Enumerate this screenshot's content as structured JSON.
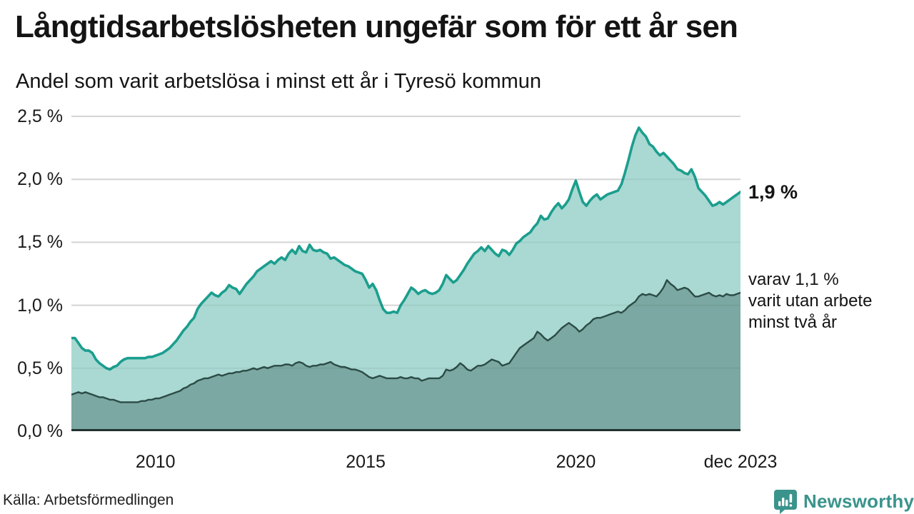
{
  "header": {
    "title": "Långtidsarbetslösheten ungefär som för ett år sen",
    "subtitle": "Andel som varit arbetslösa i minst ett år i Tyresö kommun"
  },
  "chart_data": {
    "type": "area",
    "title": "Långtidsarbetslösheten ungefär som för ett år sen",
    "subtitle": "Andel som varit arbetslösa i minst ett år i Tyresö kommun",
    "unit": "%",
    "x_start_year": 2008,
    "x_end": "dec 2023",
    "ylim": [
      0,
      2.5
    ],
    "grid": true,
    "y_ticks": [
      {
        "value": 0.0,
        "label": "0,0 %"
      },
      {
        "value": 0.5,
        "label": "0,5 %"
      },
      {
        "value": 1.0,
        "label": "1,0 %"
      },
      {
        "value": 1.5,
        "label": "1,5 %"
      },
      {
        "value": 2.0,
        "label": "2,0 %"
      },
      {
        "value": 2.5,
        "label": "2,5 %"
      }
    ],
    "x_ticks": [
      {
        "label": "2010",
        "year": 2010
      },
      {
        "label": "2015",
        "year": 2015
      },
      {
        "label": "2020",
        "year": 2020
      },
      {
        "label": "dec 2023",
        "year": 2023.9167
      }
    ],
    "colors": {
      "total_line": "#1b9e8e",
      "total_fill": "#a9d9d2",
      "subset_line": "#2c4b46",
      "subset_fill": "#7ba8a2",
      "gridline": "#e0e0e0",
      "axis_line": "#223230"
    },
    "series": [
      {
        "name": "arbetslösa minst ett år (totalt)",
        "end_value_label": "1,9 %",
        "values": [
          0.74,
          0.74,
          0.7,
          0.66,
          0.64,
          0.64,
          0.62,
          0.57,
          0.54,
          0.52,
          0.5,
          0.49,
          0.51,
          0.52,
          0.55,
          0.57,
          0.58,
          0.58,
          0.58,
          0.58,
          0.58,
          0.58,
          0.59,
          0.59,
          0.6,
          0.61,
          0.62,
          0.64,
          0.66,
          0.69,
          0.72,
          0.76,
          0.8,
          0.83,
          0.87,
          0.9,
          0.97,
          1.01,
          1.04,
          1.07,
          1.1,
          1.08,
          1.07,
          1.1,
          1.12,
          1.16,
          1.14,
          1.13,
          1.09,
          1.13,
          1.17,
          1.2,
          1.23,
          1.27,
          1.29,
          1.31,
          1.33,
          1.35,
          1.33,
          1.36,
          1.38,
          1.36,
          1.41,
          1.44,
          1.41,
          1.47,
          1.43,
          1.42,
          1.48,
          1.44,
          1.43,
          1.44,
          1.42,
          1.41,
          1.37,
          1.38,
          1.36,
          1.34,
          1.32,
          1.31,
          1.29,
          1.27,
          1.26,
          1.25,
          1.2,
          1.14,
          1.17,
          1.12,
          1.04,
          0.97,
          0.94,
          0.94,
          0.95,
          0.94,
          1.0,
          1.04,
          1.09,
          1.14,
          1.12,
          1.09,
          1.11,
          1.12,
          1.1,
          1.09,
          1.1,
          1.12,
          1.17,
          1.24,
          1.21,
          1.18,
          1.2,
          1.24,
          1.28,
          1.33,
          1.37,
          1.41,
          1.43,
          1.46,
          1.43,
          1.47,
          1.44,
          1.41,
          1.39,
          1.44,
          1.43,
          1.4,
          1.44,
          1.49,
          1.51,
          1.54,
          1.56,
          1.58,
          1.62,
          1.65,
          1.71,
          1.68,
          1.69,
          1.74,
          1.78,
          1.81,
          1.77,
          1.8,
          1.84,
          1.92,
          1.99,
          1.9,
          1.82,
          1.79,
          1.83,
          1.86,
          1.88,
          1.84,
          1.86,
          1.88,
          1.89,
          1.9,
          1.91,
          1.96,
          2.05,
          2.15,
          2.26,
          2.35,
          2.41,
          2.37,
          2.34,
          2.28,
          2.26,
          2.22,
          2.19,
          2.21,
          2.18,
          2.15,
          2.12,
          2.08,
          2.07,
          2.05,
          2.04,
          2.08,
          2.02,
          1.93,
          1.9,
          1.87,
          1.83,
          1.79,
          1.8,
          1.82,
          1.8,
          1.82,
          1.84,
          1.86,
          1.88,
          1.9
        ]
      },
      {
        "name": "varav utan arbete minst två år",
        "end_value_label": "1,1 %",
        "values": [
          0.29,
          0.3,
          0.31,
          0.3,
          0.31,
          0.3,
          0.29,
          0.28,
          0.27,
          0.27,
          0.26,
          0.25,
          0.25,
          0.24,
          0.23,
          0.23,
          0.23,
          0.23,
          0.23,
          0.23,
          0.24,
          0.24,
          0.25,
          0.25,
          0.26,
          0.26,
          0.27,
          0.28,
          0.29,
          0.3,
          0.31,
          0.32,
          0.34,
          0.35,
          0.37,
          0.38,
          0.4,
          0.41,
          0.42,
          0.42,
          0.43,
          0.44,
          0.45,
          0.44,
          0.45,
          0.46,
          0.46,
          0.47,
          0.47,
          0.48,
          0.48,
          0.49,
          0.5,
          0.49,
          0.5,
          0.51,
          0.5,
          0.51,
          0.52,
          0.52,
          0.52,
          0.53,
          0.53,
          0.52,
          0.54,
          0.55,
          0.54,
          0.52,
          0.51,
          0.52,
          0.52,
          0.53,
          0.53,
          0.54,
          0.55,
          0.53,
          0.52,
          0.51,
          0.51,
          0.5,
          0.49,
          0.49,
          0.48,
          0.47,
          0.45,
          0.43,
          0.42,
          0.43,
          0.44,
          0.43,
          0.42,
          0.42,
          0.42,
          0.42,
          0.43,
          0.42,
          0.42,
          0.43,
          0.42,
          0.42,
          0.4,
          0.41,
          0.42,
          0.42,
          0.42,
          0.42,
          0.44,
          0.49,
          0.48,
          0.49,
          0.51,
          0.54,
          0.52,
          0.49,
          0.48,
          0.5,
          0.52,
          0.52,
          0.53,
          0.55,
          0.57,
          0.56,
          0.55,
          0.52,
          0.53,
          0.54,
          0.58,
          0.62,
          0.66,
          0.68,
          0.7,
          0.72,
          0.74,
          0.79,
          0.77,
          0.74,
          0.72,
          0.74,
          0.76,
          0.79,
          0.82,
          0.84,
          0.86,
          0.84,
          0.82,
          0.79,
          0.81,
          0.84,
          0.86,
          0.89,
          0.9,
          0.9,
          0.91,
          0.92,
          0.93,
          0.94,
          0.95,
          0.94,
          0.96,
          0.99,
          1.01,
          1.03,
          1.07,
          1.09,
          1.08,
          1.09,
          1.08,
          1.07,
          1.1,
          1.14,
          1.2,
          1.17,
          1.15,
          1.12,
          1.13,
          1.14,
          1.13,
          1.1,
          1.07,
          1.07,
          1.08,
          1.09,
          1.1,
          1.08,
          1.07,
          1.08,
          1.07,
          1.09,
          1.08,
          1.08,
          1.09,
          1.1
        ]
      }
    ],
    "annotations": {
      "total_label": "1,9 %",
      "subset_label_lines": [
        "varav 1,1 %",
        "varit utan arbete",
        "minst två år"
      ]
    }
  },
  "footer": {
    "source": "Källa: Arbetsförmedlingen",
    "brand": "Newsworthy",
    "brand_color": "#3a948c"
  }
}
